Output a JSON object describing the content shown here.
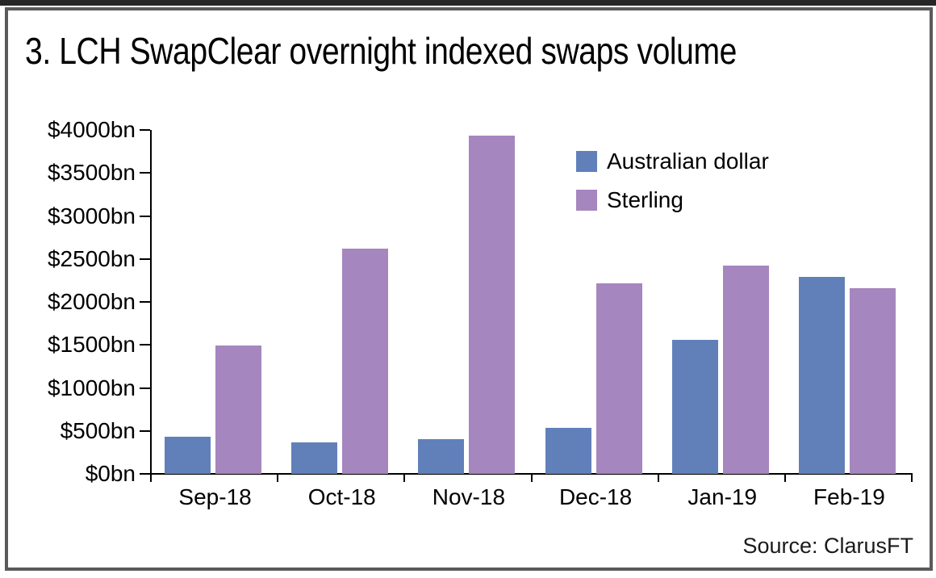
{
  "title": "3. LCH SwapClear overnight indexed swaps volume",
  "source": "Source: ClarusFT",
  "frame": {
    "border_color": "#5a5a5a",
    "top_strip_color": "#262626"
  },
  "chart_data": {
    "type": "bar",
    "title": "3. LCH SwapClear overnight indexed swaps volume",
    "categories": [
      "Sep-18",
      "Oct-18",
      "Nov-18",
      "Dec-18",
      "Jan-19",
      "Feb-19"
    ],
    "series": [
      {
        "name": "Australian dollar",
        "color": "#6180ba",
        "values": [
          430,
          365,
          400,
          535,
          1560,
          2290
        ]
      },
      {
        "name": "Sterling",
        "color": "#a586bf",
        "values": [
          1490,
          2620,
          3930,
          2215,
          2420,
          2160
        ]
      }
    ],
    "xlabel": "",
    "ylabel": "",
    "ylim": [
      0,
      4000
    ],
    "ytick_step": 500,
    "ytick_prefix": "$",
    "ytick_suffix": "bn",
    "grid": false,
    "legend_position": "top-right",
    "source": "Source: ClarusFT"
  }
}
